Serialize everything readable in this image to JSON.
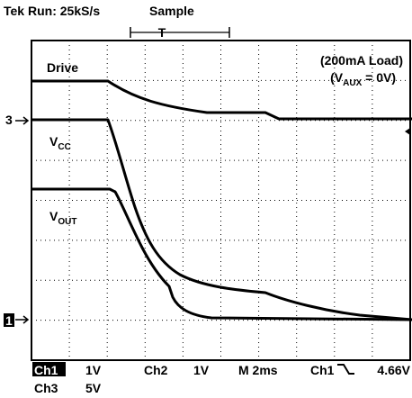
{
  "header": {
    "title": "Tek Run: 25kS/s",
    "mode": "Sample",
    "trigger": "T"
  },
  "labels": {
    "drive": "Drive",
    "load": "(200mA Load)",
    "aux": {
      "prefix": "(V",
      "sub": "AUX",
      "suffix": " = 0V)"
    },
    "vcc": {
      "main": "V",
      "sub": "CC"
    },
    "vout": {
      "main": "V",
      "sub": "OUT"
    },
    "ch3_marker": "3",
    "ch1_marker": "1"
  },
  "footer": {
    "ch1": "Ch1",
    "ch1_scale": "1V",
    "ch2": "Ch2",
    "ch2_scale": "1V",
    "timebase": "M 2ms",
    "trigger_source": "Ch1",
    "trigger_level": "4.66V",
    "ch3": "Ch3",
    "ch3_scale": "5V"
  }
}
